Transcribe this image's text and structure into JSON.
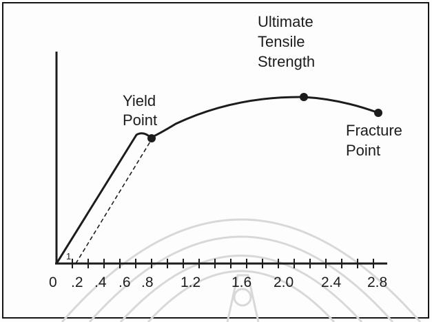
{
  "annotations": {
    "yield": [
      "Yield",
      "Point"
    ],
    "uts": [
      "Ultimate",
      "Tensile",
      "Strength"
    ],
    "fracture": [
      "Fracture",
      "Point"
    ],
    "slope_marker": "1"
  },
  "x_axis": {
    "tick_labels": [
      "0",
      ".2",
      ".4",
      ".6",
      ".8",
      "1.2",
      "1.6",
      "2.0",
      "2.4",
      "2.8"
    ]
  },
  "colors": {
    "curve": "#1c1c1c",
    "watermark": "#d8d8d8"
  }
}
